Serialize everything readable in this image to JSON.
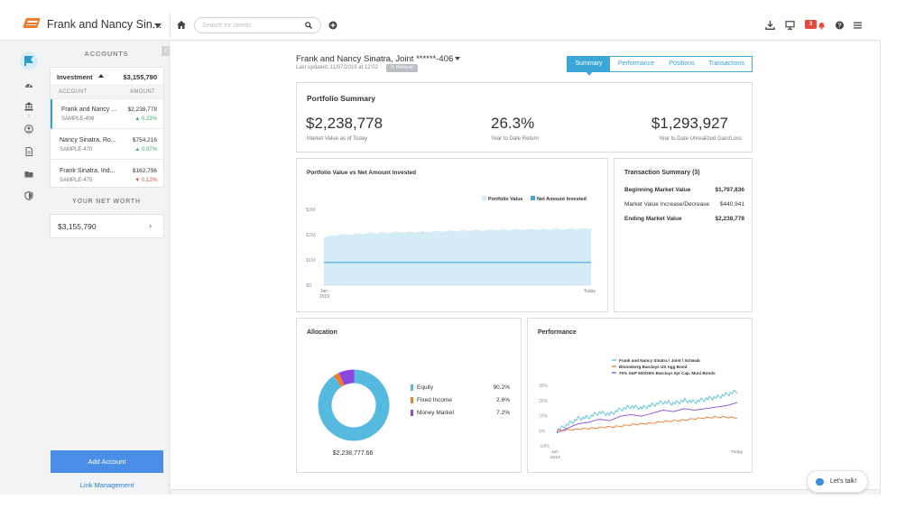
{
  "header": {
    "client_name": "Frank and Nancy Sin...",
    "search_placeholder": "Search for clients",
    "notification_count": "3"
  },
  "accounts": {
    "heading": "ACCOUNTS",
    "investment_label": "Investment",
    "investment_total": "$3,155,790",
    "col_account": "ACCOUNT",
    "col_amount": "AMOUNT",
    "items": [
      {
        "name": "Frank and Nancy ...",
        "sub": "SAMPLE-406",
        "amount": "$2,238,778",
        "change": "▲ 0.23%",
        "dir": "up"
      },
      {
        "name": "Nancy Sinatra, Ro...",
        "sub": "SAMPLE-470",
        "amount": "$754,216",
        "change": "▲ 0.07%",
        "dir": "up"
      },
      {
        "name": "Frank Sinatra, Ind...",
        "sub": "SAMPLE-475",
        "amount": "$162,796",
        "change": "▼ 0.12%",
        "dir": "down"
      }
    ],
    "networth_heading": "YOUR NET WORTH",
    "networth_value": "$3,155,790",
    "add_account": "Add Account",
    "link_management": "Link Management"
  },
  "account_header": {
    "title": "Frank and Nancy Sinatra, Joint ******-406",
    "updated": "Last updated: 11/07/2019 at 12:02",
    "refresh": "⟳ Refresh"
  },
  "tabs": [
    {
      "label": "Summary",
      "active": true
    },
    {
      "label": "Performance",
      "active": false
    },
    {
      "label": "Positions",
      "active": false
    },
    {
      "label": "Transactions",
      "active": false
    }
  ],
  "portfolio_summary": {
    "title": "Portfolio Summary",
    "market_value": "$2,238,778",
    "market_value_label": "Market Value as of Today",
    "ytd_return": "26.3%",
    "ytd_return_label": "Year to Date Return",
    "unrealized": "$1,293,927",
    "unrealized_label": "Year to Date Unrealized Gain/Loss"
  },
  "transaction_summary": {
    "title": "Transaction Summary (3)",
    "rows": [
      {
        "label": "Beginning Market Value",
        "value": "$1,797,836",
        "bold": true
      },
      {
        "label": "Market Value Increase/Decrease",
        "value": "$440,941",
        "bold": false
      },
      {
        "label": "Ending Market Value",
        "value": "$2,238,778",
        "bold": true
      }
    ]
  },
  "allocation": {
    "title": "Allocation",
    "total": "$2,238,777.66",
    "items": [
      {
        "label": "Equity",
        "pct": "90.2%",
        "value": 90.2,
        "color": "#56b9df"
      },
      {
        "label": "Fixed Income",
        "pct": "2.6%",
        "value": 2.6,
        "color": "#f07b28"
      },
      {
        "label": "Money Market",
        "pct": "7.2%",
        "value": 7.2,
        "color": "#8a47e0"
      }
    ]
  },
  "chart_data": [
    {
      "type": "area",
      "title": "Portfolio Value vs Net Amount Invested",
      "y_tick_labels": [
        "$0",
        "$1M",
        "$2M",
        "$3M"
      ],
      "ylim": [
        0,
        3000000
      ],
      "x_tick_labels": [
        "Jan\n2019",
        "Today"
      ],
      "legend_placement": "top-right",
      "series": [
        {
          "name": "Portfolio Value",
          "color": "#d3ecf6",
          "values": [
            1900000,
            2000000,
            2020000,
            2060000,
            2080000,
            2100000,
            2110000,
            2130000,
            2150000,
            2160000,
            2170000,
            2190000,
            2200000,
            2210000,
            2210000,
            2220000,
            2230000,
            2238778
          ]
        },
        {
          "name": "Net Amount Invested",
          "color": "#4aa3d6",
          "values": [
            900000,
            900000,
            900000,
            900000,
            900000,
            900000,
            900000,
            900000,
            900000,
            900000,
            900000,
            900000,
            900000,
            900000,
            900000,
            900000,
            900000,
            900000
          ]
        }
      ]
    },
    {
      "type": "line",
      "title": "Performance",
      "y_tick_labels": [
        "-10%",
        "0%",
        "10%",
        "20%",
        "30%"
      ],
      "ylim": [
        -10,
        30
      ],
      "x_tick_labels": [
        "Jan\n2019",
        "Today"
      ],
      "legend_placement": "top-right",
      "series": [
        {
          "name": "Frank and Nancy Sinatra \\ Joint \\ Schwab",
          "color": "#56c3dd",
          "values": [
            0,
            4,
            8,
            9,
            12,
            11,
            14,
            16,
            15,
            17,
            19,
            18,
            20,
            19,
            21,
            22,
            24,
            26
          ]
        },
        {
          "name": "Bloomberg Barclays US Agg Bond",
          "color": "#f07b28",
          "values": [
            0,
            0.5,
            1,
            1.5,
            2,
            2.5,
            3,
            4,
            4.5,
            5,
            6,
            6.5,
            7,
            8,
            8.5,
            9,
            9,
            8.5
          ]
        },
        {
          "name": "75% S&P 500/25% Barclays 5yr Cap. Muni Bonds",
          "color": "#8a47e0",
          "values": [
            0,
            3,
            6,
            7,
            9,
            8,
            11,
            12,
            11,
            13,
            15,
            14,
            16,
            15,
            16,
            17,
            18,
            20
          ]
        }
      ]
    }
  ],
  "chat": {
    "label": "Let's talk!"
  }
}
